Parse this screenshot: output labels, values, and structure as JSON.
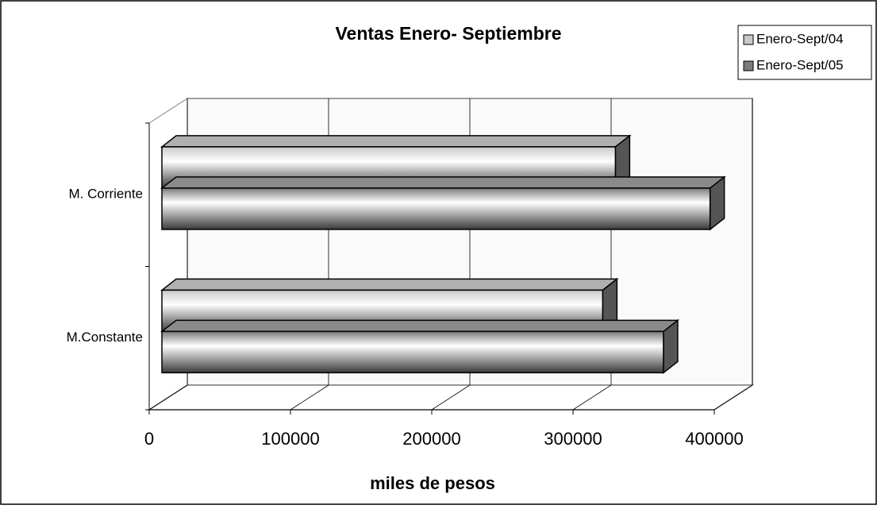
{
  "chart_data": {
    "type": "bar3d_horizontal",
    "title": "Ventas Enero- Septiembre",
    "x_label": "miles de pesos",
    "categories": [
      "M. Corriente",
      "M.Constante"
    ],
    "series": [
      {
        "name": "Enero-Sept/04",
        "color": "#c8c8c8",
        "values": [
          321000,
          312000
        ]
      },
      {
        "name": "Enero-Sept/05",
        "color": "#7a7a7a",
        "values": [
          388000,
          355000
        ]
      }
    ],
    "xlim": [
      0,
      400000
    ],
    "xticks": [
      0,
      100000,
      200000,
      300000,
      400000
    ],
    "grid": true,
    "legend": "top-right"
  }
}
